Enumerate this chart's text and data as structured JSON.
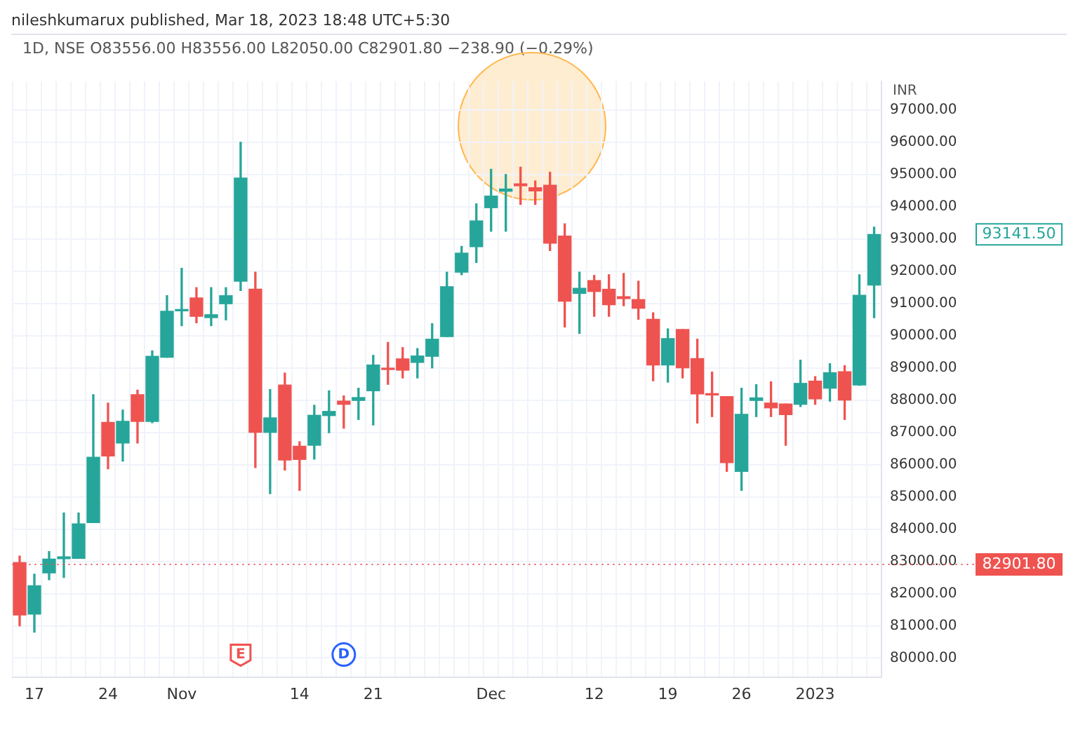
{
  "chart_data": {
    "type": "candlestick",
    "subtitle": "nileshkumarux published, Mar 18, 2023 18:48 UTC+5:30",
    "title": "1D, NSE  O83556.00 H83556.00 L82050.00 C82901.80 −238.90 (−0.29%)",
    "ylabel": "INR",
    "categories": [
      null,
      "17",
      null,
      null,
      null,
      null,
      "24",
      null,
      null,
      null,
      null,
      "Nov",
      null,
      null,
      null,
      null,
      null,
      null,
      null,
      "14",
      null,
      null,
      null,
      null,
      "21",
      null,
      null,
      null,
      null,
      null,
      null,
      null,
      "Dec",
      null,
      null,
      null,
      null,
      null,
      null,
      "12",
      null,
      null,
      null,
      null,
      "19",
      null,
      null,
      null,
      null,
      "26",
      null,
      null,
      null,
      null,
      "2023",
      null,
      null,
      null,
      null
    ],
    "ohlc": [
      [
        82960,
        83160,
        81000,
        81335
      ],
      [
        81360,
        82600,
        80800,
        82240
      ],
      [
        82640,
        83300,
        82430,
        83070
      ],
      [
        83080,
        84500,
        82500,
        83140
      ],
      [
        83090,
        84500,
        83090,
        84160
      ],
      [
        84200,
        88170,
        84200,
        86230
      ],
      [
        87310,
        87910,
        85870,
        86270
      ],
      [
        86670,
        87690,
        86110,
        87340
      ],
      [
        88170,
        88310,
        86670,
        87340
      ],
      [
        87340,
        89530,
        87300,
        89360
      ],
      [
        89330,
        91240,
        89330,
        90760
      ],
      [
        90770,
        92090,
        90310,
        90810
      ],
      [
        91170,
        91490,
        90400,
        90600
      ],
      [
        90560,
        91490,
        90310,
        90650
      ],
      [
        90990,
        91490,
        90490,
        91240
      ],
      [
        91690,
        96000,
        91400,
        94890
      ],
      [
        91440,
        91970,
        85910,
        87000
      ],
      [
        87000,
        88330,
        85100,
        87450
      ],
      [
        88470,
        88840,
        85830,
        86140
      ],
      [
        86570,
        86710,
        85200,
        86160
      ],
      [
        86600,
        87840,
        86170,
        87530
      ],
      [
        87520,
        88290,
        86990,
        87650
      ],
      [
        87970,
        88130,
        87130,
        87870
      ],
      [
        87990,
        88370,
        87400,
        88080
      ],
      [
        88290,
        89390,
        87230,
        89090
      ],
      [
        88990,
        89790,
        88490,
        88950
      ],
      [
        89280,
        89630,
        88690,
        88930
      ],
      [
        89170,
        89600,
        88690,
        89370
      ],
      [
        89360,
        90370,
        89000,
        89890
      ],
      [
        89970,
        91970,
        89970,
        91520
      ],
      [
        91970,
        92770,
        91890,
        92560
      ],
      [
        92760,
        94090,
        92270,
        93560
      ],
      [
        93970,
        95160,
        93240,
        94330
      ],
      [
        94480,
        95000,
        93240,
        94550
      ],
      [
        94710,
        95230,
        94070,
        94650
      ],
      [
        94590,
        94800,
        94070,
        94490
      ],
      [
        94670,
        95070,
        92640,
        92870
      ],
      [
        93090,
        93470,
        90270,
        91070
      ],
      [
        91310,
        91970,
        90070,
        91470
      ],
      [
        91710,
        91870,
        90600,
        91370
      ],
      [
        91440,
        91890,
        90600,
        90960
      ],
      [
        91210,
        91930,
        90930,
        91150
      ],
      [
        91120,
        91690,
        90510,
        90850
      ],
      [
        90510,
        90710,
        88600,
        89090
      ],
      [
        89090,
        90210,
        88560,
        89910
      ],
      [
        90190,
        90190,
        88690,
        89000
      ],
      [
        89290,
        89890,
        87290,
        88190
      ],
      [
        88200,
        88870,
        87490,
        88160
      ],
      [
        88110,
        88110,
        85790,
        86060
      ],
      [
        85790,
        88370,
        85200,
        87560
      ],
      [
        87990,
        88480,
        87490,
        88070
      ],
      [
        87910,
        88570,
        87490,
        87760
      ],
      [
        87880,
        87880,
        86600,
        87550
      ],
      [
        87870,
        89240,
        87800,
        88520
      ],
      [
        88590,
        88730,
        87870,
        88040
      ],
      [
        88370,
        89130,
        87970,
        88850
      ],
      [
        88880,
        89070,
        87400,
        88000
      ],
      [
        88470,
        91890,
        88460,
        91250
      ],
      [
        91570,
        93370,
        90560,
        93141.5
      ]
    ],
    "colors": [
      "#ef5350",
      "#26a69a",
      "#26a69a",
      "#26a69a",
      "#26a69a",
      "#26a69a",
      "#ef5350",
      "#26a69a",
      "#ef5350",
      "#26a69a",
      "#26a69a",
      "#26a69a",
      "#ef5350",
      "#26a69a",
      "#26a69a",
      "#26a69a",
      "#ef5350",
      "#26a69a",
      "#ef5350",
      "#ef5350",
      "#26a69a",
      "#26a69a",
      "#ef5350",
      "#26a69a",
      "#26a69a",
      "#ef5350",
      "#ef5350",
      "#26a69a",
      "#26a69a",
      "#26a69a",
      "#26a69a",
      "#26a69a",
      "#26a69a",
      "#26a69a",
      "#ef5350",
      "#ef5350",
      "#ef5350",
      "#ef5350",
      "#26a69a",
      "#ef5350",
      "#ef5350",
      "#ef5350",
      "#ef5350",
      "#ef5350",
      "#26a69a",
      "#ef5350",
      "#ef5350",
      "#ef5350",
      "#ef5350",
      "#26a69a",
      "#26a69a",
      "#ef5350",
      "#ef5350",
      "#26a69a",
      "#ef5350",
      "#26a69a",
      "#ef5350",
      "#26a69a",
      "#26a69a"
    ],
    "ylim": [
      79410,
      97890
    ],
    "yticks": [
      {
        "value": 80000,
        "label": "80000.00"
      },
      {
        "value": 81000,
        "label": "81000.00"
      },
      {
        "value": 82000,
        "label": "82000.00"
      },
      {
        "value": 83000,
        "label": "83000.00"
      },
      {
        "value": 84000,
        "label": "84000.00"
      },
      {
        "value": 85000,
        "label": "85000.00"
      },
      {
        "value": 86000,
        "label": "86000.00"
      },
      {
        "value": 87000,
        "label": "87000.00"
      },
      {
        "value": 88000,
        "label": "88000.00"
      },
      {
        "value": 89000,
        "label": "89000.00"
      },
      {
        "value": 90000,
        "label": "90000.00"
      },
      {
        "value": 91000,
        "label": "91000.00"
      },
      {
        "value": 92000,
        "label": "92000.00"
      },
      {
        "value": 93000,
        "label": "93000.00"
      },
      {
        "value": 94000,
        "label": "94000.00"
      },
      {
        "value": 95000,
        "label": "95000.00"
      },
      {
        "value": 96000,
        "label": "96000.00"
      },
      {
        "value": 97000,
        "label": "97000.00"
      }
    ],
    "ref_lines": [
      {
        "axis": "y",
        "value": 82901.8,
        "label": "82901.80",
        "color": "#ef5350",
        "line_style": "dotted"
      }
    ],
    "annotations": [
      "93141.50",
      "E",
      "D"
    ],
    "grid": true,
    "legend": false
  }
}
